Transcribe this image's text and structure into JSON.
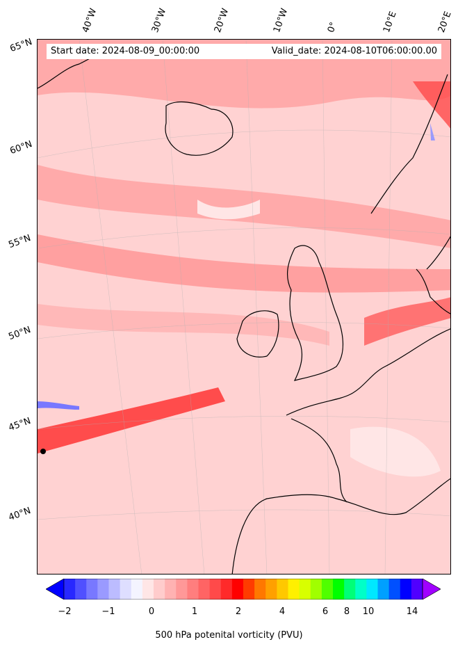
{
  "map": {
    "start_label": "Start date: 2024-08-09_00:00:00",
    "valid_label": "Valid_date: 2024-08-10T06:00:00.00",
    "longitude_labels": [
      "40°W",
      "30°W",
      "20°W",
      "10°W",
      "0°",
      "10°E",
      "20°E"
    ],
    "latitude_labels": [
      "65°N",
      "60°N",
      "55°N",
      "50°N",
      "45°N",
      "40°N"
    ],
    "background_color": "#ffd2d2",
    "coastline_color": "#000000"
  },
  "colorbar": {
    "title": "500 hPa potenital vorticity (PVU)",
    "ticks": [
      "−2",
      "−1",
      "0",
      "1",
      "2",
      "4",
      "6",
      "8",
      "10",
      "14"
    ],
    "colors": [
      "#0000ff",
      "#2828ff",
      "#5050ff",
      "#7878ff",
      "#9a9aff",
      "#bcbcff",
      "#dedeff",
      "#f4f4ff",
      "#ffe6e6",
      "#ffcccc",
      "#ffb2b2",
      "#ff9898",
      "#ff7e7e",
      "#ff6464",
      "#ff4a4a",
      "#ff2a2a",
      "#ff0000",
      "#ff3c00",
      "#ff7800",
      "#ffa000",
      "#ffc800",
      "#fff000",
      "#d8ff00",
      "#a0ff00",
      "#50ff00",
      "#00ff00",
      "#00ff78",
      "#00ffc8",
      "#00e8ff",
      "#00a0ff",
      "#0050ff",
      "#0000ff",
      "#5000ff",
      "#a000ff"
    ]
  }
}
